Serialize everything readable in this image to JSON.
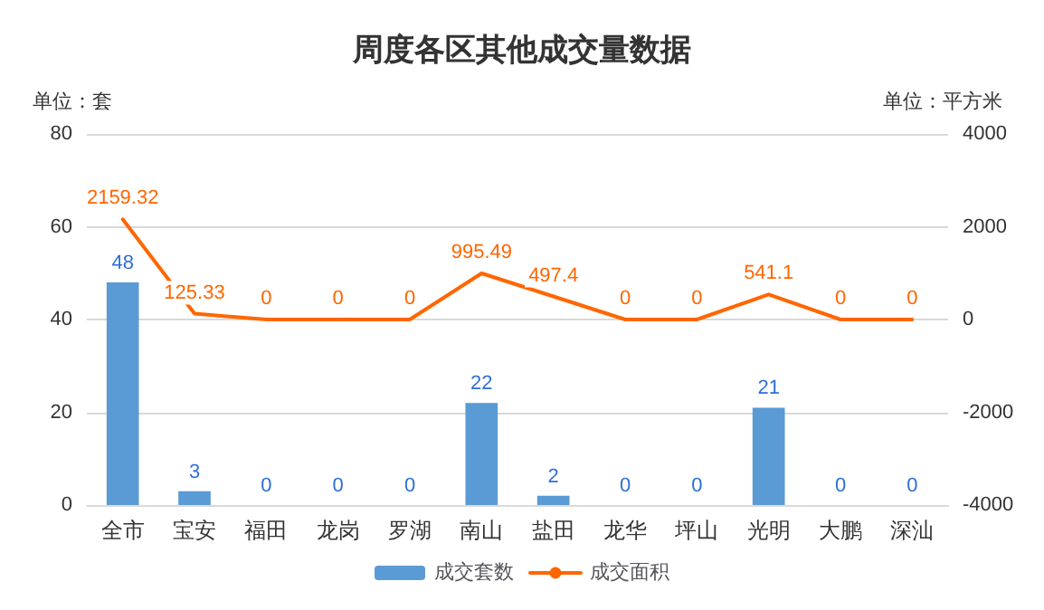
{
  "chart_data": {
    "type": "bar",
    "title": "周度各区其他成交量数据",
    "ylabel": "单位：套",
    "y2label": "单位：平方米",
    "categories": [
      "全市",
      "宝安",
      "福田",
      "龙岗",
      "罗湖",
      "南山",
      "盐田",
      "龙华",
      "坪山",
      "光明",
      "大鹏",
      "深汕"
    ],
    "series": [
      {
        "name": "成交套数",
        "color": "#5b9bd5",
        "values": [
          48,
          3,
          0,
          0,
          0,
          22,
          2,
          0,
          0,
          21,
          0,
          0
        ]
      },
      {
        "name": "成交面积",
        "type": "line",
        "axis": "y2",
        "color": "#ff6600",
        "values": [
          2159.32,
          125.33,
          0,
          0,
          0,
          995.49,
          497.4,
          0,
          0,
          541.1,
          0,
          0
        ]
      }
    ],
    "ylim": [
      0,
      80
    ],
    "yticks": [
      0,
      20,
      40,
      60,
      80
    ],
    "y2lim": [
      -4000,
      4000
    ],
    "y2ticks": [
      -4000,
      -2000,
      0,
      2000,
      4000
    ],
    "grid": "y",
    "legend": "bottom",
    "data_labels": true,
    "marker": "none",
    "line_style": "solid"
  }
}
